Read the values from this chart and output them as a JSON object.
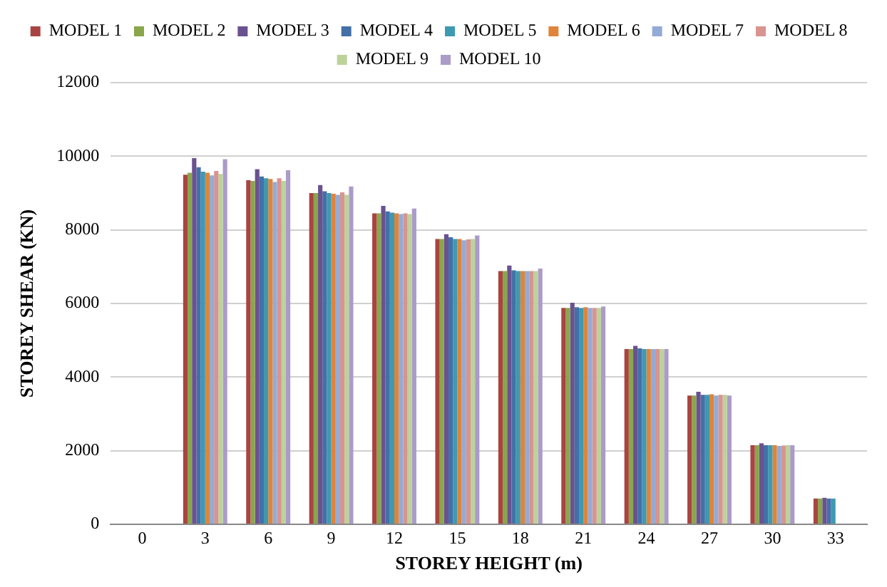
{
  "chart_data": {
    "type": "bar",
    "xlabel": "STOREY HEIGHT (m)",
    "ylabel": "STOREY SHEAR (KN)",
    "categories": [
      "0",
      "3",
      "6",
      "9",
      "12",
      "15",
      "18",
      "21",
      "24",
      "27",
      "30",
      "33"
    ],
    "series": [
      {
        "name": "MODEL 1",
        "color": "#a94442",
        "values": [
          null,
          9500,
          9350,
          9000,
          8450,
          7750,
          6880,
          5880,
          4760,
          3500,
          2150,
          700
        ]
      },
      {
        "name": "MODEL 2",
        "color": "#8aa64a",
        "values": [
          null,
          9550,
          9330,
          9000,
          8450,
          7750,
          6880,
          5880,
          4760,
          3500,
          2150,
          700
        ]
      },
      {
        "name": "MODEL 3",
        "color": "#6a5290",
        "values": [
          null,
          9950,
          9650,
          9220,
          8650,
          7880,
          7030,
          6020,
          4850,
          3600,
          2200,
          720
        ]
      },
      {
        "name": "MODEL 4",
        "color": "#4470a8",
        "values": [
          null,
          9700,
          9450,
          9050,
          8500,
          7800,
          6900,
          5900,
          4780,
          3520,
          2150,
          700
        ]
      },
      {
        "name": "MODEL 5",
        "color": "#3d9ab0",
        "values": [
          null,
          9580,
          9400,
          9000,
          8470,
          7750,
          6880,
          5880,
          4760,
          3520,
          2150,
          700
        ]
      },
      {
        "name": "MODEL 6",
        "color": "#e0843a",
        "values": [
          null,
          9550,
          9380,
          8980,
          8450,
          7750,
          6880,
          5900,
          4760,
          3530,
          2150,
          null
        ]
      },
      {
        "name": "MODEL 7",
        "color": "#93abd6",
        "values": [
          null,
          9480,
          9300,
          8950,
          8430,
          7720,
          6880,
          5880,
          4760,
          3500,
          2130,
          null
        ]
      },
      {
        "name": "MODEL 8",
        "color": "#d89490",
        "values": [
          null,
          9600,
          9400,
          9020,
          8450,
          7740,
          6880,
          5880,
          4760,
          3520,
          2140,
          null
        ]
      },
      {
        "name": "MODEL 9",
        "color": "#bcd29a",
        "values": [
          null,
          9520,
          9330,
          8950,
          8430,
          7750,
          6880,
          5880,
          4760,
          3520,
          2150,
          null
        ]
      },
      {
        "name": "MODEL 10",
        "color": "#ab9bc9",
        "values": [
          null,
          9920,
          9620,
          9180,
          8580,
          7850,
          6950,
          5920,
          4760,
          3500,
          2150,
          null
        ]
      }
    ],
    "ylim": [
      0,
      12000
    ],
    "yticks": [
      0,
      2000,
      4000,
      6000,
      8000,
      10000,
      12000
    ],
    "grid": "y",
    "legend": "top"
  }
}
